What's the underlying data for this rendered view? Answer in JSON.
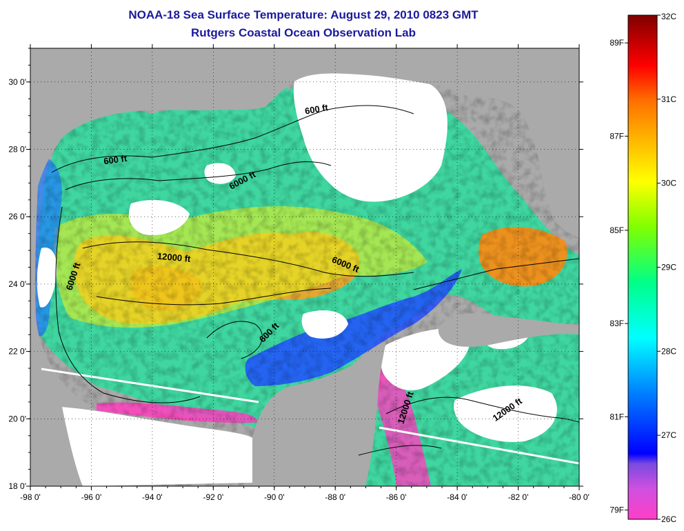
{
  "title": {
    "line1": "NOAA-18 Sea Surface Temperature:  August 29, 2010 0823 GMT",
    "line2": "Rutgers Coastal Ocean Observation Lab"
  },
  "map": {
    "lon_range": [
      -98,
      -80
    ],
    "lat_range": [
      18,
      31
    ],
    "x_ticks": [
      {
        "value": -98,
        "label": "-98 0'"
      },
      {
        "value": -96,
        "label": "-96 0'"
      },
      {
        "value": -94,
        "label": "-94 0'"
      },
      {
        "value": -92,
        "label": "-92 0'"
      },
      {
        "value": -90,
        "label": "-90 0'"
      },
      {
        "value": -88,
        "label": "-88 0'"
      },
      {
        "value": -86,
        "label": "-86 0'"
      },
      {
        "value": -84,
        "label": "-84 0'"
      },
      {
        "value": -82,
        "label": "-82 0'"
      },
      {
        "value": -80,
        "label": "-80 0'"
      }
    ],
    "y_ticks": [
      {
        "value": 18,
        "label": "18 0'"
      },
      {
        "value": 20,
        "label": "20 0'"
      },
      {
        "value": 22,
        "label": "22 0'"
      },
      {
        "value": 24,
        "label": "24 0'"
      },
      {
        "value": 26,
        "label": "26 0'"
      },
      {
        "value": 28,
        "label": "28 0'"
      },
      {
        "value": 30,
        "label": "30 0'"
      }
    ],
    "contour_labels": [
      {
        "text": "600 ft",
        "lon": -95.2,
        "lat": 27.6,
        "angle": -8
      },
      {
        "text": "600 ft",
        "lon": -88.6,
        "lat": 29.1,
        "angle": -10
      },
      {
        "text": "6000 ft",
        "lon": -91.0,
        "lat": 27.0,
        "angle": -28
      },
      {
        "text": "12000 ft",
        "lon": -93.3,
        "lat": 24.7,
        "angle": 5
      },
      {
        "text": "6000 ft",
        "lon": -87.7,
        "lat": 24.5,
        "angle": 22
      },
      {
        "text": "6000 ft",
        "lon": -96.5,
        "lat": 24.2,
        "angle": -72
      },
      {
        "text": "600 ft",
        "lon": -90.1,
        "lat": 22.5,
        "angle": -45
      },
      {
        "text": "12000 ft",
        "lon": -85.6,
        "lat": 20.3,
        "angle": -72
      },
      {
        "text": "12000 ft",
        "lon": -82.3,
        "lat": 20.2,
        "angle": -35
      }
    ],
    "colors": {
      "land": "#aaaaaa",
      "cloud": "#ffffff",
      "contour": "#000000"
    }
  },
  "colorbar": {
    "range_c": [
      26,
      32
    ],
    "stops": [
      {
        "t": 0.0,
        "color": "#ff3ec8"
      },
      {
        "t": 0.06,
        "color": "#d050e0"
      },
      {
        "t": 0.11,
        "color": "#7a4ae0"
      },
      {
        "t": 0.13,
        "color": "#0000ff"
      },
      {
        "t": 0.25,
        "color": "#0080ff"
      },
      {
        "t": 0.36,
        "color": "#00ffff"
      },
      {
        "t": 0.47,
        "color": "#00ff88"
      },
      {
        "t": 0.58,
        "color": "#80ff00"
      },
      {
        "t": 0.67,
        "color": "#ffff00"
      },
      {
        "t": 0.76,
        "color": "#ffb000"
      },
      {
        "t": 0.83,
        "color": "#ff7000"
      },
      {
        "t": 0.9,
        "color": "#ff0000"
      },
      {
        "t": 1.0,
        "color": "#800000"
      }
    ],
    "celsius_labels": [
      {
        "value": 26,
        "label": "26C"
      },
      {
        "value": 27,
        "label": "27C"
      },
      {
        "value": 28,
        "label": "28C"
      },
      {
        "value": 29,
        "label": "29C"
      },
      {
        "value": 30,
        "label": "30C"
      },
      {
        "value": 31,
        "label": "31C"
      },
      {
        "value": 32,
        "label": "32C"
      }
    ],
    "fahrenheit_labels": [
      {
        "value_c": 26.11,
        "label": "79F"
      },
      {
        "value_c": 27.22,
        "label": "81F"
      },
      {
        "value_c": 28.33,
        "label": "83F"
      },
      {
        "value_c": 29.44,
        "label": "85F"
      },
      {
        "value_c": 30.56,
        "label": "87F"
      },
      {
        "value_c": 31.67,
        "label": "89F"
      }
    ]
  }
}
